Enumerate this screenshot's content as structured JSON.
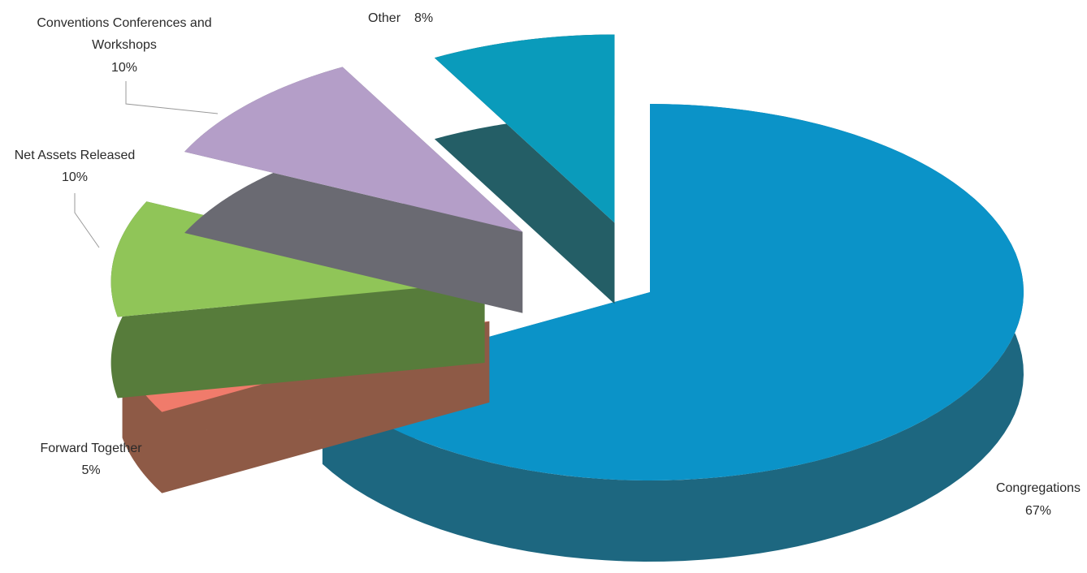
{
  "chart_data": {
    "type": "pie",
    "title": "",
    "style": "3d-exploded",
    "slices": [
      {
        "name": "Congregations",
        "value": 67,
        "label": "67%",
        "top": "#0b93c8",
        "side": "#1d6780"
      },
      {
        "name": "Forward Together",
        "value": 5,
        "label": "5%",
        "top": "#f07b6b",
        "side": "#8e5a46"
      },
      {
        "name": "Net Assets Released",
        "value": 10,
        "label": "10%",
        "top": "#90c558",
        "side": "#577c3b"
      },
      {
        "name": "Conventions Conferences and Workshops",
        "value": 10,
        "label": "10%",
        "top": "#b49ec8",
        "side": "#6a6a72"
      },
      {
        "name": "Other",
        "value": 8,
        "label": "8%",
        "top": "#0a9bbb",
        "side": "#245e66"
      }
    ]
  }
}
